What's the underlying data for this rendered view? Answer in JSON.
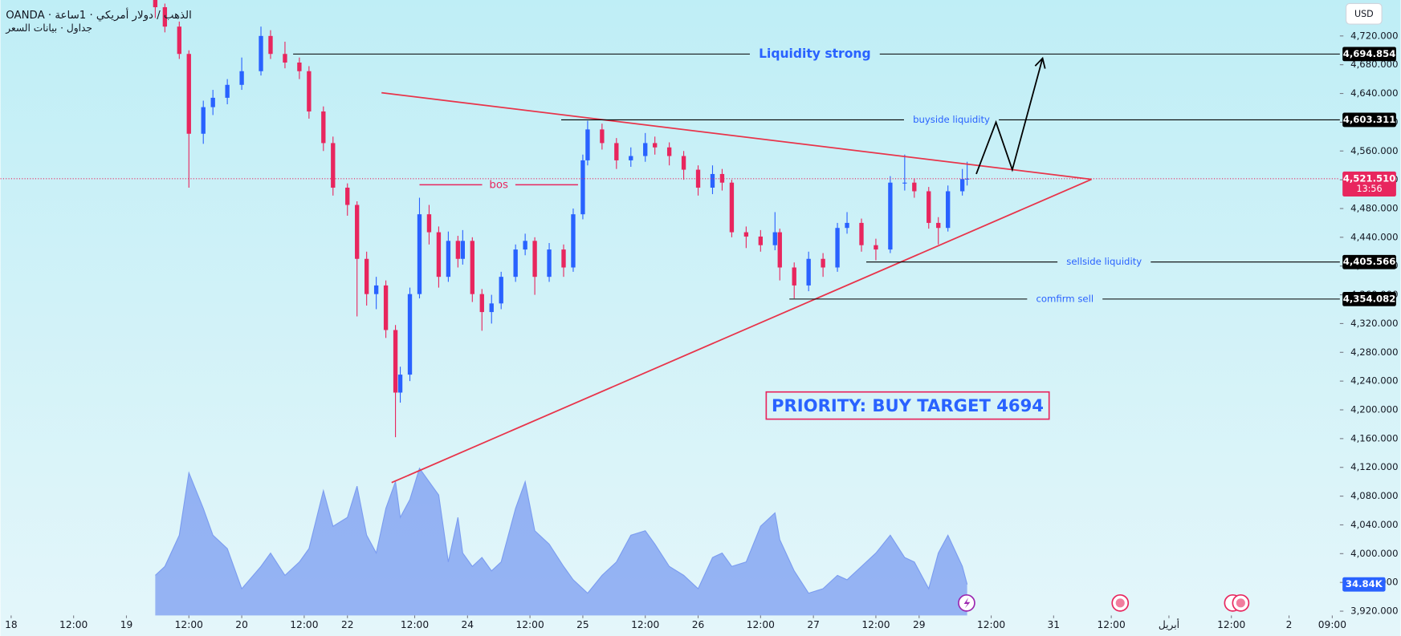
{
  "chart_data": {
    "type": "candlestick",
    "title": "OANDA · الذهب / دولار أمريكي · 1ساعة",
    "subtitle": "جداول · بيانات السعر",
    "currency": "USD",
    "up_color": "#2962ff",
    "down_color": "#e8265e",
    "xlim": [
      -2.23,
      276.58
    ],
    "ylim": [
      3914,
      4770
    ],
    "xticks": [
      {
        "value": 0,
        "label": "18"
      },
      {
        "value": 13,
        "label": "12:00"
      },
      {
        "value": 24,
        "label": "19"
      },
      {
        "value": 37,
        "label": "12:00"
      },
      {
        "value": 48,
        "label": "20"
      },
      {
        "value": 61,
        "label": "12:00"
      },
      {
        "value": 70,
        "label": "22"
      },
      {
        "value": 84,
        "label": "12:00"
      },
      {
        "value": 95,
        "label": "24"
      },
      {
        "value": 108,
        "label": "12:00"
      },
      {
        "value": 119,
        "label": "25"
      },
      {
        "value": 132,
        "label": "12:00"
      },
      {
        "value": 143,
        "label": "26"
      },
      {
        "value": 156,
        "label": "12:00"
      },
      {
        "value": 167,
        "label": "27"
      },
      {
        "value": 180,
        "label": "12:00"
      },
      {
        "value": 189,
        "label": "29"
      },
      {
        "value": 204,
        "label": "12:00"
      },
      {
        "value": 217,
        "label": "31"
      },
      {
        "value": 229,
        "label": "12:00"
      },
      {
        "value": 241,
        "label": "أبريل"
      },
      {
        "value": 254,
        "label": "12:00"
      },
      {
        "value": 266,
        "label": "2"
      },
      {
        "value": 275,
        "label": "09:00"
      }
    ],
    "yticks": [
      {
        "value": 4720,
        "label": "4,720.000"
      },
      {
        "value": 4680,
        "label": "4,680.000"
      },
      {
        "value": 4640,
        "label": "4,640.000"
      },
      {
        "value": 4600,
        "label": "4,600.000"
      },
      {
        "value": 4560,
        "label": "4,560.000"
      },
      {
        "value": 4520,
        "label": "4,520.000"
      },
      {
        "value": 4480,
        "label": "4,480.000"
      },
      {
        "value": 4440,
        "label": "4,440.000"
      },
      {
        "value": 4400,
        "label": "4,400.000"
      },
      {
        "value": 4360,
        "label": "4,360.000"
      },
      {
        "value": 4320,
        "label": "4,320.000"
      },
      {
        "value": 4280,
        "label": "4,280.000"
      },
      {
        "value": 4240,
        "label": "4,240.000"
      },
      {
        "value": 4200,
        "label": "4,200.000"
      },
      {
        "value": 4160,
        "label": "4,160.000"
      },
      {
        "value": 4120,
        "label": "4,120.000"
      },
      {
        "value": 4080,
        "label": "4,080.000"
      },
      {
        "value": 4040,
        "label": "4,040.000"
      },
      {
        "value": 4000,
        "label": "4,000.000"
      },
      {
        "value": 3960,
        "label": "3,960.000"
      },
      {
        "value": 3920,
        "label": "3,920.000"
      }
    ],
    "candles": {
      "x": [
        30,
        32,
        35,
        37,
        40,
        42,
        45,
        48,
        52,
        54,
        57,
        60,
        62,
        65,
        67,
        70,
        72,
        74,
        76,
        78,
        80,
        81,
        83,
        85,
        87,
        89,
        91,
        93,
        94,
        96,
        98,
        100,
        102,
        105,
        107,
        109,
        112,
        115,
        117,
        119,
        120,
        123,
        126,
        129,
        132,
        134,
        137,
        140,
        143,
        146,
        148,
        150,
        153,
        156,
        159,
        160,
        163,
        166,
        169,
        172,
        174,
        177,
        180,
        183,
        186,
        188,
        191,
        193,
        195,
        198,
        199
      ],
      "open": [
        4770,
        4760,
        4733,
        4695,
        4584,
        4621,
        4634,
        4652,
        4671,
        4720,
        4695,
        4683,
        4671,
        4615,
        4571,
        4509,
        4485,
        4410,
        4361,
        4373,
        4311,
        4224,
        4249,
        4361,
        4472,
        4447,
        4385,
        4435,
        4410,
        4435,
        4361,
        4336,
        4348,
        4385,
        4423,
        4435,
        4385,
        4423,
        4398,
        4472,
        4547,
        4590,
        4571,
        4547,
        4553,
        4571,
        4565,
        4553,
        4534,
        4509,
        4528,
        4516,
        4447,
        4441,
        4429,
        4447,
        4398,
        4373,
        4410,
        4398,
        4453,
        4460,
        4429,
        4423,
        4516,
        4516,
        4504,
        4460,
        4453,
        4504,
        4521
      ],
      "high": [
        4772,
        4765,
        4740,
        4700,
        4630,
        4645,
        4660,
        4690,
        4733,
        4728,
        4712,
        4690,
        4678,
        4622,
        4580,
        4515,
        4490,
        4420,
        4385,
        4380,
        4318,
        4260,
        4370,
        4495,
        4485,
        4455,
        4448,
        4442,
        4450,
        4440,
        4368,
        4360,
        4392,
        4430,
        4445,
        4440,
        4432,
        4430,
        4480,
        4555,
        4602,
        4598,
        4578,
        4565,
        4585,
        4580,
        4572,
        4560,
        4540,
        4540,
        4535,
        4520,
        4455,
        4450,
        4475,
        4452,
        4405,
        4420,
        4418,
        4460,
        4475,
        4466,
        4438,
        4525,
        4555,
        4522,
        4510,
        4468,
        4512,
        4535,
        4545
      ],
      "low": [
        4745,
        4725,
        4688,
        4509,
        4570,
        4610,
        4625,
        4645,
        4665,
        4688,
        4675,
        4660,
        4605,
        4560,
        4498,
        4470,
        4330,
        4345,
        4340,
        4300,
        4162,
        4210,
        4240,
        4355,
        4430,
        4370,
        4378,
        4398,
        4402,
        4350,
        4310,
        4320,
        4340,
        4378,
        4415,
        4360,
        4378,
        4385,
        4392,
        4465,
        4540,
        4562,
        4535,
        4538,
        4545,
        4555,
        4540,
        4520,
        4498,
        4500,
        4505,
        4440,
        4425,
        4420,
        4422,
        4380,
        4355,
        4365,
        4385,
        4392,
        4445,
        4420,
        4408,
        4418,
        4505,
        4495,
        4452,
        4430,
        4448,
        4498,
        4512
      ],
      "close": [
        4760,
        4733,
        4695,
        4584,
        4621,
        4634,
        4652,
        4671,
        4720,
        4695,
        4683,
        4671,
        4615,
        4571,
        4509,
        4485,
        4410,
        4361,
        4373,
        4311,
        4224,
        4249,
        4361,
        4472,
        4447,
        4385,
        4435,
        4410,
        4435,
        4361,
        4336,
        4348,
        4385,
        4423,
        4435,
        4385,
        4423,
        4398,
        4472,
        4547,
        4590,
        4571,
        4547,
        4553,
        4571,
        4565,
        4553,
        4534,
        4509,
        4528,
        4516,
        4447,
        4441,
        4429,
        4447,
        4398,
        4373,
        4410,
        4398,
        4453,
        4460,
        4429,
        4423,
        4516,
        4516,
        4504,
        4460,
        4453,
        4504,
        4521,
        4521.51
      ]
    },
    "volume": {
      "color": "#7b9cf0",
      "ylim": [
        0,
        690
      ],
      "values": [
        45,
        55,
        90,
        160,
        120,
        90,
        75,
        30,
        55,
        70,
        45,
        60,
        75,
        140,
        100,
        110,
        145,
        90,
        70,
        120,
        150,
        110,
        130,
        165,
        150,
        135,
        60,
        110,
        70,
        55,
        65,
        50,
        60,
        120,
        150,
        95,
        80,
        55,
        40,
        30,
        25,
        45,
        60,
        90,
        95,
        80,
        55,
        45,
        30,
        65,
        70,
        55,
        60,
        100,
        115,
        85,
        50,
        25,
        30,
        45,
        40,
        55,
        70,
        90,
        65,
        60,
        30,
        70,
        90,
        55,
        34.84
      ],
      "last_label": "34.84K"
    },
    "last_price": {
      "value": 4521.51,
      "label": "4,521.510",
      "countdown": "13:56"
    },
    "levels": [
      {
        "label": "Liquidity strong",
        "value": 4694.854,
        "value_label": "4,694.854",
        "x_start": 58.7
      },
      {
        "label": "buyside liquidity",
        "value": 4603.311,
        "value_label": "4,603.311",
        "x_start": 114.5
      },
      {
        "label": "sellside liquidity",
        "value": 4405.566,
        "value_label": "4,405.566",
        "x_start": 178
      },
      {
        "label": "comfirm sell",
        "value": 4354.082,
        "value_label": "4,354.082",
        "x_start": 162
      }
    ],
    "bos": {
      "label": "bos",
      "value": 4513,
      "x_start": 85,
      "x_end": 118
    },
    "trendlines": {
      "color": "#e8344a",
      "lines": [
        {
          "x": [
            77.1,
            224.9
          ],
          "y": [
            4641,
            4520.6
          ]
        },
        {
          "x": [
            79.2,
            224.9
          ],
          "y": [
            4098.8,
            4520.6
          ]
        }
      ]
    },
    "arrow": {
      "x": [
        200.9,
        205,
        208.4,
        214.7
      ],
      "y": [
        4528,
        4600,
        4534,
        4689
      ]
    },
    "annotation": "PRIORITY: BUY TARGET 4694"
  }
}
